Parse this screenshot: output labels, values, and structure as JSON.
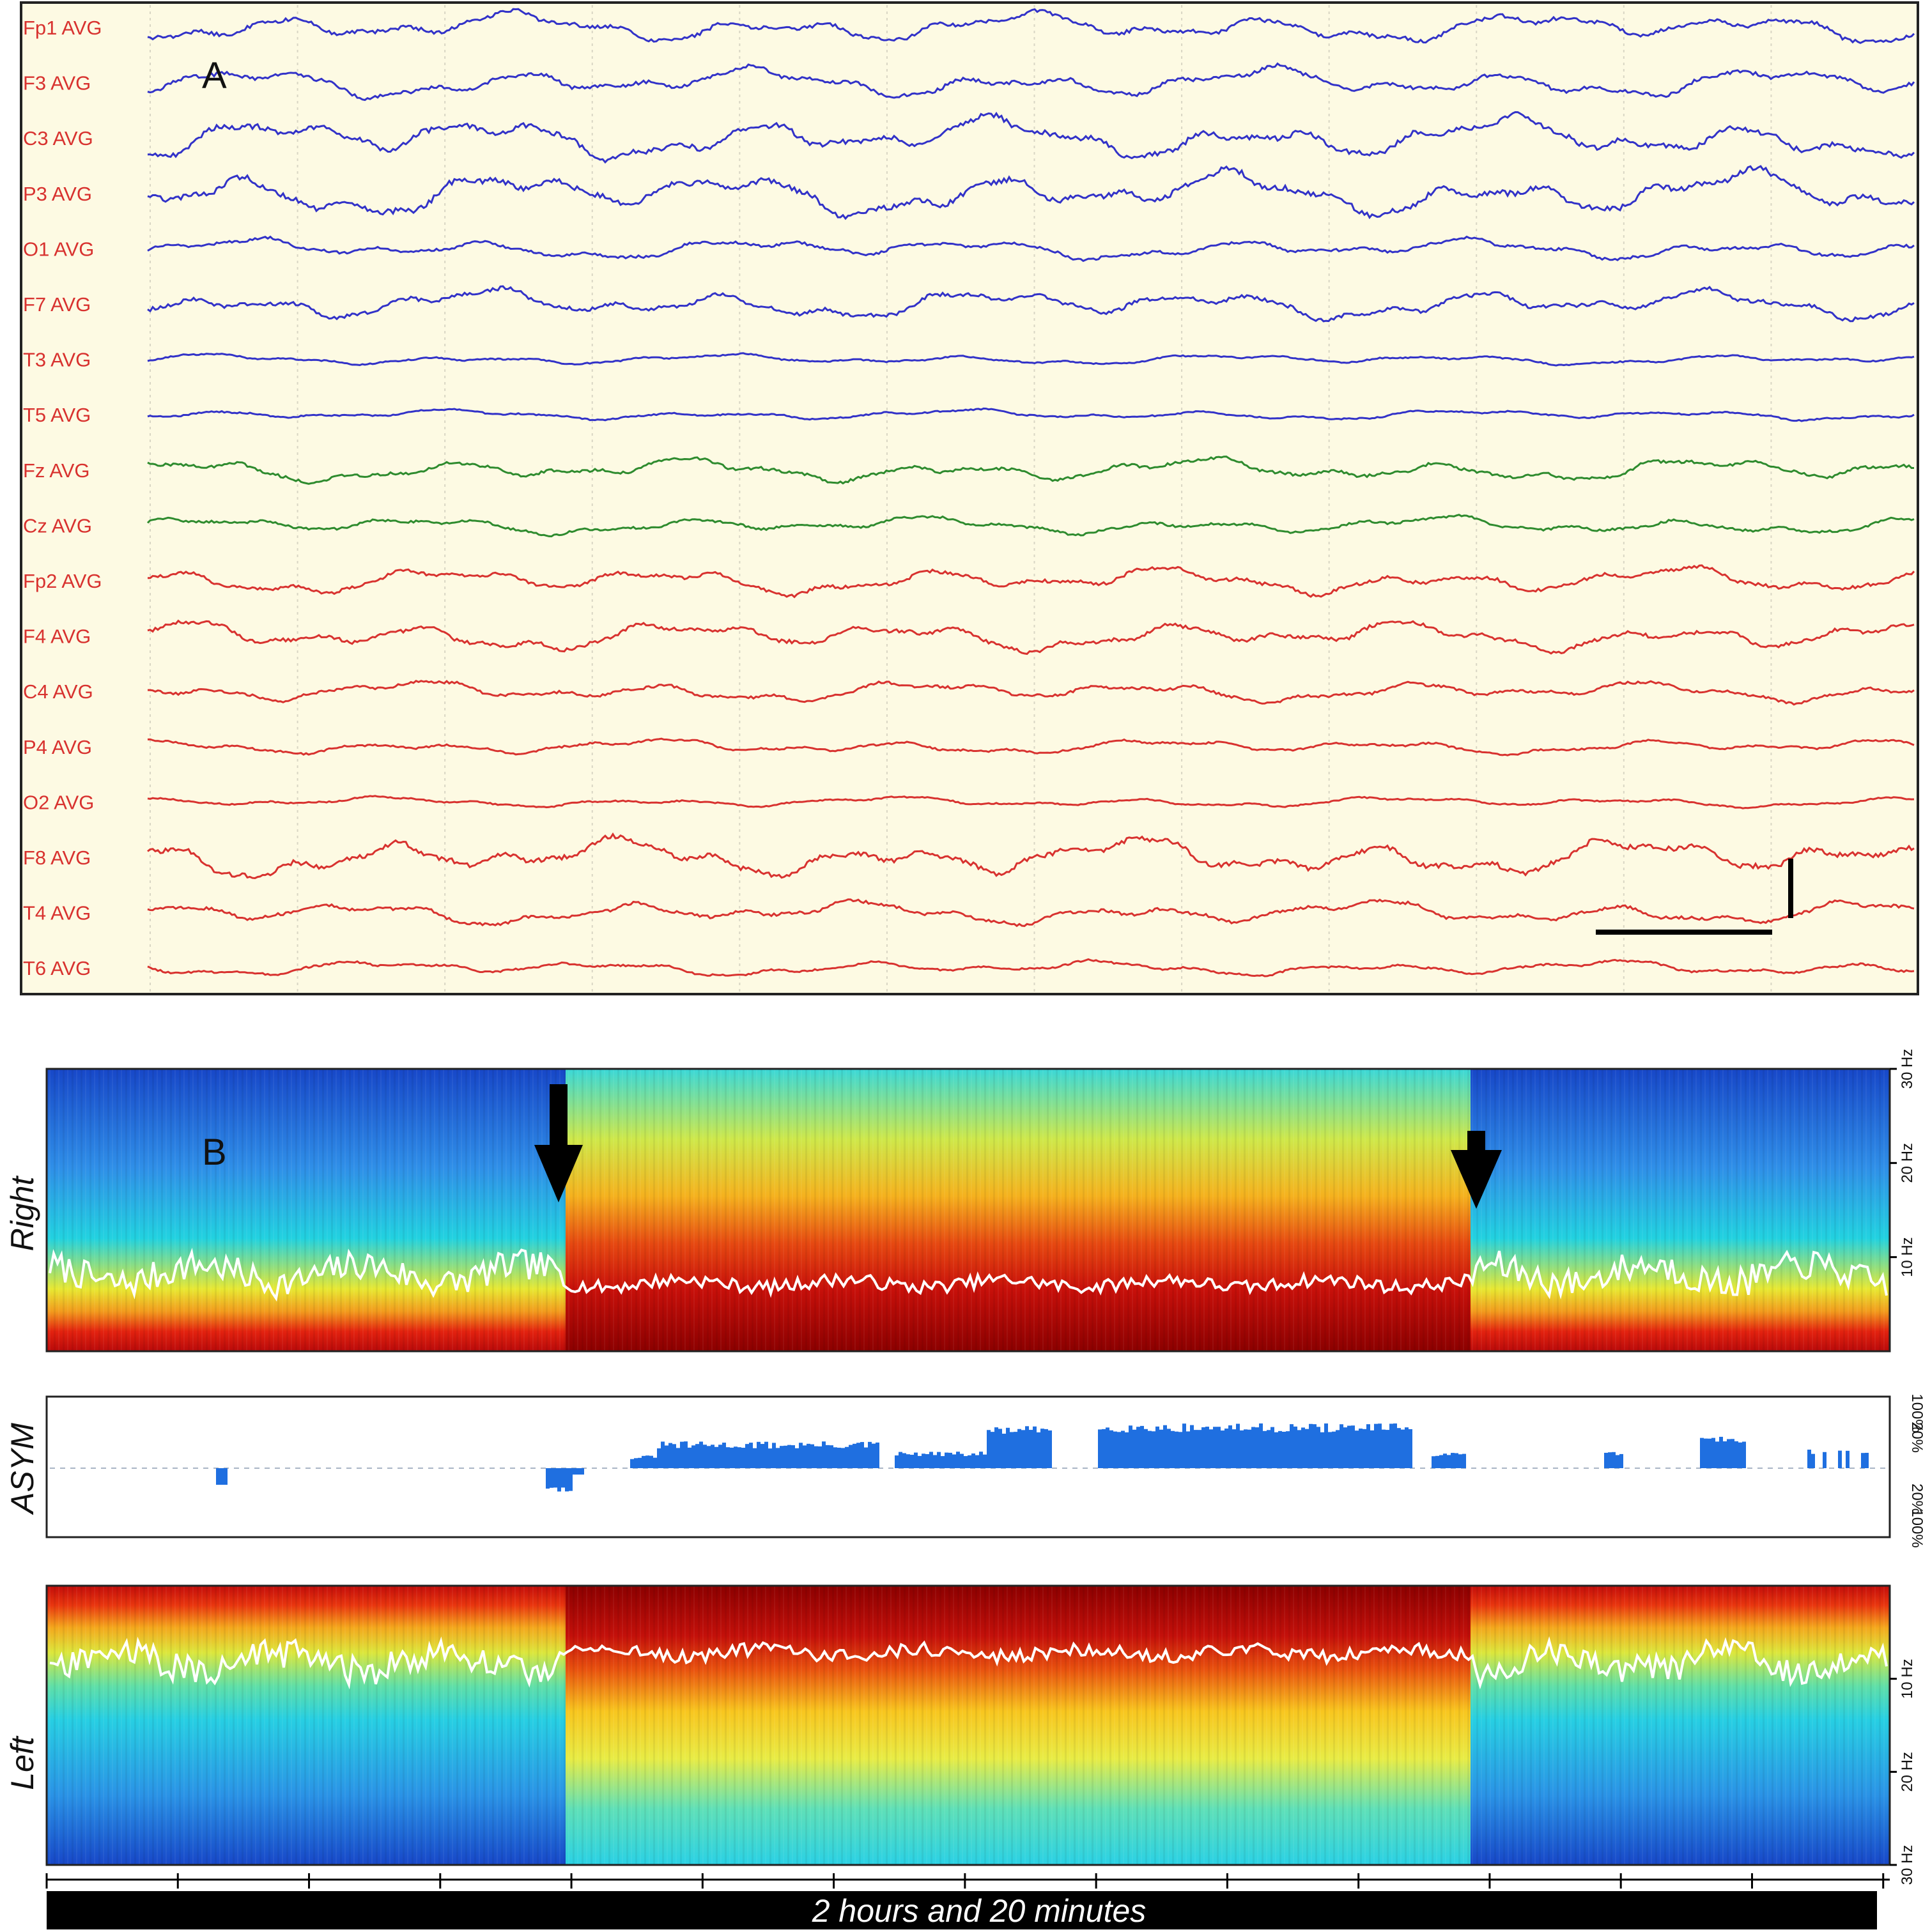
{
  "panel_a": {
    "label": "A",
    "scale_bar": "true"
  },
  "panel_b": {
    "label": "B"
  },
  "labels": {
    "right": "Right",
    "asym": "ASYM",
    "left": "Left",
    "time_span": "2 hours and 20 minutes"
  },
  "colors": {
    "left_channels": "#3232c8",
    "midline_channels": "#2e8b2e",
    "right_channels": "#d8322f",
    "label_color": "#d8322f",
    "eeg_background": "#fdfae3",
    "asym_fill": "#1f6fe0",
    "trend_line": "#ffffff"
  },
  "chart_data": [
    {
      "type": "line",
      "title": "",
      "series": [
        {
          "name": "Fp1 AVG",
          "color": "#3232c8",
          "amplitude": 1.0
        },
        {
          "name": "F3 AVG",
          "color": "#3232c8",
          "amplitude": 1.0
        },
        {
          "name": "C3 AVG",
          "color": "#3232c8",
          "amplitude": 1.4
        },
        {
          "name": "P3 AVG",
          "color": "#3232c8",
          "amplitude": 1.5
        },
        {
          "name": "O1 AVG",
          "color": "#3232c8",
          "amplitude": 0.7
        },
        {
          "name": "F7 AVG",
          "color": "#3232c8",
          "amplitude": 1.0
        },
        {
          "name": "T3 AVG",
          "color": "#3232c8",
          "amplitude": 0.35
        },
        {
          "name": "T5 AVG",
          "color": "#3232c8",
          "amplitude": 0.35
        },
        {
          "name": "Fz AVG",
          "color": "#2e8b2e",
          "amplitude": 0.8
        },
        {
          "name": "Cz AVG",
          "color": "#2e8b2e",
          "amplitude": 0.6
        },
        {
          "name": "Fp2 AVG",
          "color": "#d8322f",
          "amplitude": 0.9
        },
        {
          "name": "F4 AVG",
          "color": "#d8322f",
          "amplitude": 1.0
        },
        {
          "name": "C4 AVG",
          "color": "#d8322f",
          "amplitude": 0.7
        },
        {
          "name": "P4 AVG",
          "color": "#d8322f",
          "amplitude": 0.5
        },
        {
          "name": "O2 AVG",
          "color": "#d8322f",
          "amplitude": 0.35
        },
        {
          "name": "F8 AVG",
          "color": "#d8322f",
          "amplitude": 1.3
        },
        {
          "name": "T4 AVG",
          "color": "#d8322f",
          "amplitude": 0.8
        },
        {
          "name": "T6 AVG",
          "color": "#d8322f",
          "amplitude": 0.5
        }
      ],
      "grid": true
    },
    {
      "type": "heatmap",
      "title": "Right",
      "ylabel": "",
      "yticks": [
        "30 Hz",
        "20 Hz",
        "10 Hz"
      ],
      "ylim": [
        0,
        30
      ],
      "events_fraction": [
        0.28,
        0.775
      ],
      "segments": [
        {
          "from": 0.0,
          "to": 0.2,
          "state": "background"
        },
        {
          "from": 0.2,
          "to": 0.28,
          "state": "background"
        },
        {
          "from": 0.28,
          "to": 0.775,
          "state": "seizure"
        },
        {
          "from": 0.775,
          "to": 1.0,
          "state": "background"
        }
      ],
      "trend_line_hz": {
        "background": 8,
        "seizure": 7
      }
    },
    {
      "type": "area",
      "title": "ASYM",
      "yticks": [
        "100%",
        "20%",
        "20%",
        "100%"
      ],
      "ylim": [
        -100,
        100
      ],
      "baseline_percent": 20
    },
    {
      "type": "heatmap",
      "title": "Left",
      "ylabel": "",
      "yticks": [
        "10 Hz",
        "20 Hz",
        "30 Hz"
      ],
      "ylim": [
        30,
        0
      ],
      "events_fraction": [
        0.28,
        0.775
      ]
    }
  ]
}
